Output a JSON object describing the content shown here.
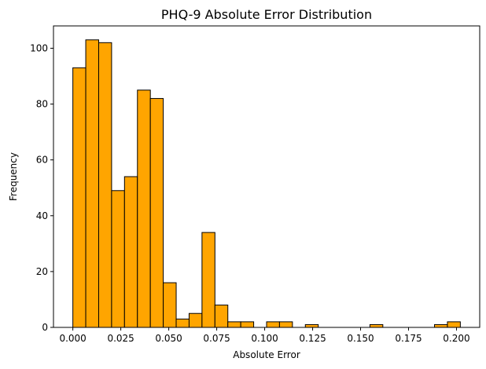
{
  "chart_data": {
    "type": "bar",
    "title": "PHQ-9 Absolute Error Distribution",
    "xlabel": "Absolute Error",
    "ylabel": "Frequency",
    "bin_edges": [
      0.0,
      0.00673,
      0.01347,
      0.0202,
      0.02693,
      0.03367,
      0.0404,
      0.04713,
      0.05387,
      0.0606,
      0.06733,
      0.07407,
      0.0808,
      0.08753,
      0.09427,
      0.101,
      0.10773,
      0.11447,
      0.1212,
      0.12793,
      0.13467,
      0.1414,
      0.14813,
      0.15487,
      0.1616,
      0.16833,
      0.17507,
      0.1818,
      0.18853,
      0.19527,
      0.202
    ],
    "values": [
      93,
      103,
      102,
      49,
      54,
      85,
      82,
      16,
      3,
      5,
      34,
      8,
      2,
      2,
      0,
      2,
      2,
      0,
      1,
      0,
      0,
      0,
      0,
      1,
      0,
      0,
      0,
      0,
      1,
      2
    ],
    "xlim": [
      -0.0101,
      0.2121
    ],
    "ylim": [
      0,
      108
    ],
    "x_ticks": [
      0.0,
      0.025,
      0.05,
      0.075,
      0.1,
      0.125,
      0.15,
      0.175,
      0.2
    ],
    "x_tick_labels": [
      "0.000",
      "0.025",
      "0.050",
      "0.075",
      "0.100",
      "0.125",
      "0.150",
      "0.175",
      "0.200"
    ],
    "y_ticks": [
      0,
      20,
      40,
      60,
      80,
      100
    ],
    "y_tick_labels": [
      "0",
      "20",
      "40",
      "60",
      "80",
      "100"
    ],
    "bar_color": "#ffa500",
    "edge_color": "#000000",
    "grid": false,
    "legend": "none"
  }
}
